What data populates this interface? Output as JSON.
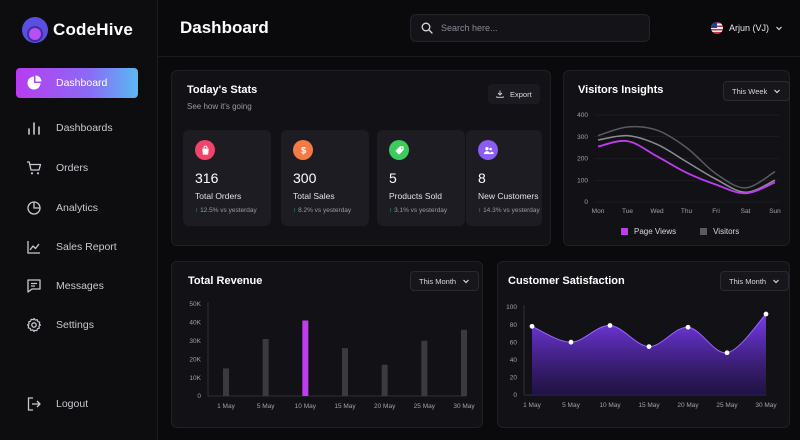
{
  "brand": {
    "name": "CodeHive"
  },
  "sidebar": {
    "items": [
      {
        "label": "Dashboard",
        "icon": "pie-chart-icon",
        "active": true
      },
      {
        "label": "Dashboards",
        "icon": "bar-chart-icon"
      },
      {
        "label": "Orders",
        "icon": "cart-icon"
      },
      {
        "label": "Analytics",
        "icon": "donut-chart-icon"
      },
      {
        "label": "Sales Report",
        "icon": "line-chart-icon"
      },
      {
        "label": "Messages",
        "icon": "message-icon"
      },
      {
        "label": "Settings",
        "icon": "gear-icon"
      }
    ],
    "logout": {
      "label": "Logout",
      "icon": "logout-icon"
    }
  },
  "header": {
    "title": "Dashboard",
    "search_placeholder": "Search here...",
    "user_name": "Arjun (VJ)"
  },
  "colors": {
    "accent": "#b83cf0",
    "accent_end": "#5ab9f5",
    "surface": "#121216",
    "tile": "#1c1c22"
  },
  "stats_card": {
    "title": "Today's Stats",
    "subtitle": "See how it's going",
    "export_label": "Export",
    "tiles": [
      {
        "value": "316",
        "label": "Total Orders",
        "change": "12.5% vs yesterday",
        "color": "#f2436a",
        "icon": "shopping-bag-icon"
      },
      {
        "value": "300",
        "label": "Total Sales",
        "change": "8.2% vs yesterday",
        "color": "#f57b45",
        "icon": "dollar-icon"
      },
      {
        "value": "5",
        "label": "Products Sold",
        "change": "3.1% vs yesterday",
        "color": "#3ccb5c",
        "icon": "tag-icon"
      },
      {
        "value": "8",
        "label": "New Customers",
        "change": "14.3% vs yesterday",
        "color": "#8a5cf0",
        "icon": "users-icon"
      }
    ]
  },
  "visitors_card": {
    "title": "Visitors Insights",
    "filter": "This Week"
  },
  "revenue_card": {
    "title": "Total Revenue",
    "filter": "This Month"
  },
  "satisfaction_card": {
    "title": "Customer Satisfaction",
    "filter": "This Month"
  },
  "chart_data": [
    {
      "type": "line",
      "title": "Visitors Insights",
      "x": [
        "Mon",
        "Tue",
        "Wed",
        "Thu",
        "Fri",
        "Sat",
        "Sun"
      ],
      "ylim": [
        0,
        400
      ],
      "yticks": [
        0,
        100,
        200,
        300,
        400
      ],
      "series": [
        {
          "name": "Page Views",
          "color": "#c03cf0",
          "values": [
            255,
            280,
            210,
            135,
            80,
            40,
            90
          ]
        },
        {
          "name": "Visitors",
          "color": "#5a5a62",
          "values": [
            305,
            345,
            330,
            250,
            130,
            65,
            140
          ]
        },
        {
          "name": "",
          "color": "#8c8c94",
          "values": [
            285,
            305,
            265,
            185,
            105,
            45,
            100
          ]
        }
      ],
      "legend_position": "bottom"
    },
    {
      "type": "bar",
      "title": "Total Revenue",
      "categories": [
        "1 May",
        "5 May",
        "10 May",
        "15 May",
        "20 May",
        "25 May",
        "30 May"
      ],
      "values": [
        15000,
        31000,
        41000,
        26000,
        17000,
        30000,
        36000
      ],
      "highlight_index": 2,
      "yticks": [
        0,
        10000,
        20000,
        30000,
        40000,
        50000
      ],
      "ytick_labels": [
        "0",
        "10K",
        "20K",
        "30K",
        "40K",
        "50K"
      ],
      "ylim": [
        0,
        50000
      ],
      "bar_color": "#3a3a40",
      "highlight_color": "#c03cf0"
    },
    {
      "type": "area",
      "title": "Customer Satisfaction",
      "categories": [
        "1 May",
        "5 May",
        "10 May",
        "15 May",
        "20 May",
        "25 May",
        "30 May"
      ],
      "values": [
        78,
        60,
        79,
        55,
        77,
        48,
        92
      ],
      "yticks": [
        0,
        20,
        40,
        60,
        80,
        100
      ],
      "ylim": [
        0,
        100
      ],
      "color": "#7a3cf0"
    }
  ]
}
